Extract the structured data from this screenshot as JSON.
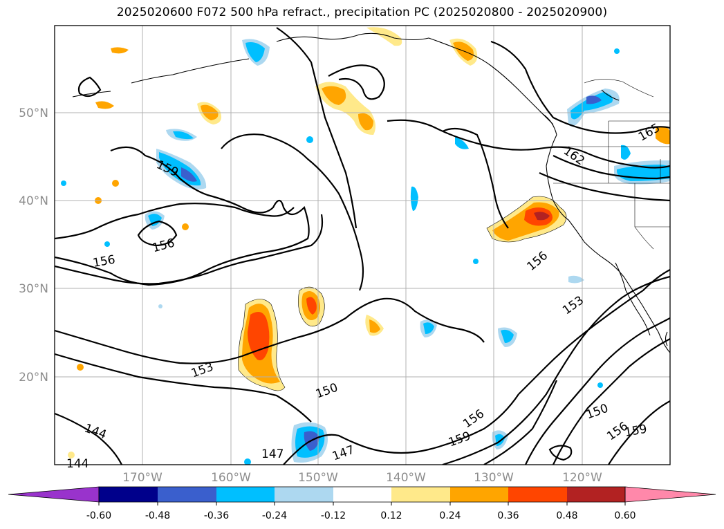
{
  "title": "2025020600 F072 500 hPa refract., precipitation PC (2025020800 - 2025020900)",
  "map": {
    "lon_range": [
      -180,
      -110
    ],
    "lat_range": [
      10,
      60
    ],
    "lon_ticks": [
      -170,
      -160,
      -150,
      -140,
      -130,
      -120
    ],
    "lat_ticks": [
      20,
      30,
      40,
      50
    ],
    "lon_tick_labels": [
      "170°W",
      "160°W",
      "150°W",
      "140°W",
      "130°W",
      "120°W"
    ],
    "lat_tick_labels": [
      "20°N",
      "30°N",
      "40°N",
      "50°N"
    ],
    "grid": true,
    "contour_labels": [
      "159",
      "156",
      "156",
      "153",
      "150",
      "156",
      "159",
      "156",
      "153",
      "150",
      "156",
      "159",
      "162",
      "165",
      "147",
      "147",
      "144",
      "144"
    ]
  },
  "colorbar": {
    "ticks": [
      "-0.60",
      "-0.48",
      "-0.36",
      "-0.24",
      "-0.12",
      "0.12",
      "0.24",
      "0.36",
      "0.48",
      "0.60"
    ],
    "colors": [
      "#9933cc",
      "#00008b",
      "#3a5fcd",
      "#00bfff",
      "#add8f0",
      "#ffffff",
      "#ffe98a",
      "#ffa500",
      "#ff4500",
      "#b22222",
      "#ff88aa"
    ],
    "extend": "both"
  }
}
